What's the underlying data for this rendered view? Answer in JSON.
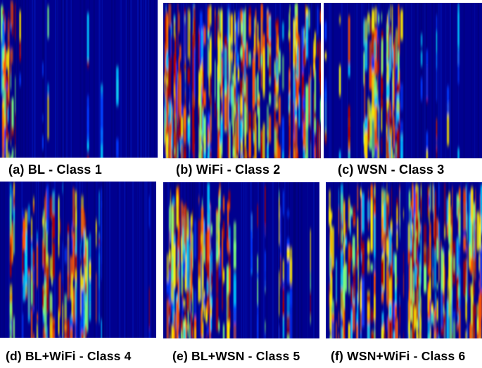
{
  "panels": [
    {
      "caption": "(a)  BL - Class 1"
    },
    {
      "caption": "(b)  WiFi - Class 2"
    },
    {
      "caption": "(c)   WSN - Class 3"
    },
    {
      "caption": "(d)  BL+WiFi - Class 4"
    },
    {
      "caption": "(e)  BL+WSN - Class 5"
    },
    {
      "caption": "(f)   WSN+WiFi - Class 6"
    }
  ],
  "colors": {
    "background": "#00008f",
    "colormap": [
      "#00008f",
      "#0038ff",
      "#00c8ff",
      "#7dff7d",
      "#ffea00",
      "#ff5500",
      "#b00000"
    ]
  }
}
